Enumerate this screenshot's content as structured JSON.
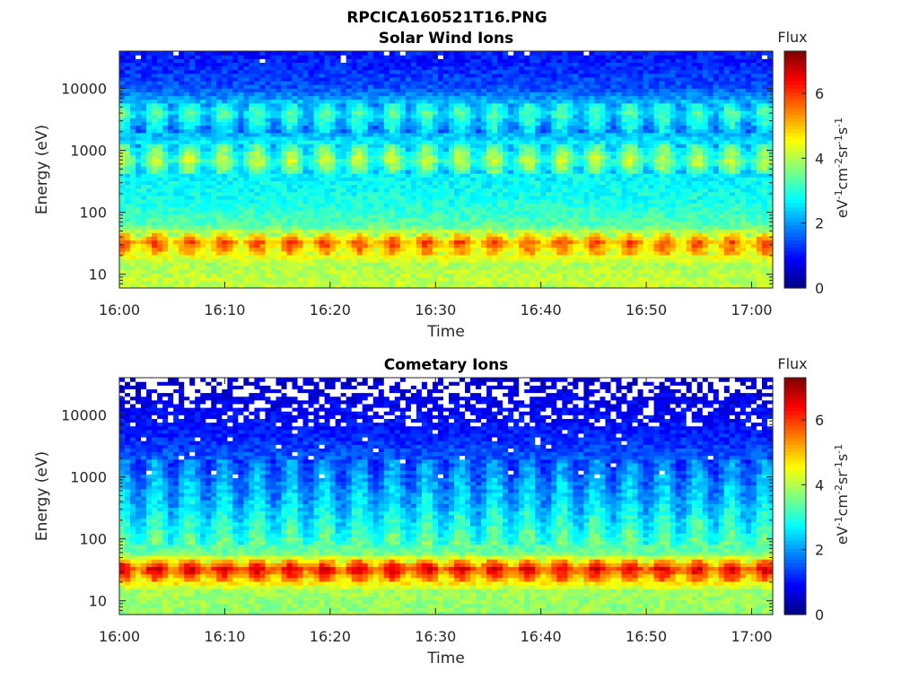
{
  "figure_title": "RPCICA160521T16.PNG",
  "chart_data": [
    {
      "type": "heatmap",
      "title": "Solar Wind Ions",
      "xlabel": "Time",
      "ylabel": "Energy (eV)",
      "x_ticks": [
        "16:00",
        "16:10",
        "16:20",
        "16:30",
        "16:40",
        "16:50",
        "17:00"
      ],
      "x_range": [
        "16:00",
        "17:02"
      ],
      "y_scale": "log",
      "y_ticks": [
        "10",
        "100",
        "1000",
        "10000"
      ],
      "y_range_eV": [
        6,
        40000
      ],
      "colorbar": {
        "label": "Flux",
        "units": "eV-1cm-2sr-1s-1",
        "ticks": [
          "0",
          "2",
          "4",
          "6"
        ],
        "range": [
          0,
          7.3
        ]
      },
      "energy_profile": [
        {
          "energy": 8,
          "flux": 4.1
        },
        {
          "energy": 15,
          "flux": 4.0
        },
        {
          "energy": 33,
          "flux": 5.4
        },
        {
          "energy": 60,
          "flux": 3.4
        },
        {
          "energy": 150,
          "flux": 2.9
        },
        {
          "energy": 400,
          "flux": 2.7
        },
        {
          "energy": 700,
          "flux": 3.6
        },
        {
          "energy": 2000,
          "flux": 2.1
        },
        {
          "energy": 4000,
          "flux": 2.9
        },
        {
          "energy": 10000,
          "flux": 1.5
        },
        {
          "energy": 30000,
          "flux": 1.1
        }
      ]
    },
    {
      "type": "heatmap",
      "title": "Cometary Ions",
      "xlabel": "Time",
      "ylabel": "Energy (eV)",
      "x_ticks": [
        "16:00",
        "16:10",
        "16:20",
        "16:30",
        "16:40",
        "16:50",
        "17:00"
      ],
      "x_range": [
        "16:00",
        "17:02"
      ],
      "y_scale": "log",
      "y_ticks": [
        "10",
        "100",
        "1000",
        "10000"
      ],
      "y_range_eV": [
        6,
        40000
      ],
      "colorbar": {
        "label": "Flux",
        "units": "eV-1cm-2sr-1s-1",
        "ticks": [
          "0",
          "2",
          "4",
          "6"
        ],
        "range": [
          0,
          7.3
        ]
      },
      "energy_profile": [
        {
          "energy": 8,
          "flux": 3.8
        },
        {
          "energy": 15,
          "flux": 3.9
        },
        {
          "energy": 33,
          "flux": 6.2
        },
        {
          "energy": 60,
          "flux": 3.5
        },
        {
          "energy": 150,
          "flux": 2.9
        },
        {
          "energy": 400,
          "flux": 2.3
        },
        {
          "energy": 1500,
          "flux": 1.7
        },
        {
          "energy": 5000,
          "flux": 1.1
        },
        {
          "energy": 15000,
          "flux": 0.8
        },
        {
          "energy": 30000,
          "flux": 0.6
        }
      ]
    }
  ]
}
